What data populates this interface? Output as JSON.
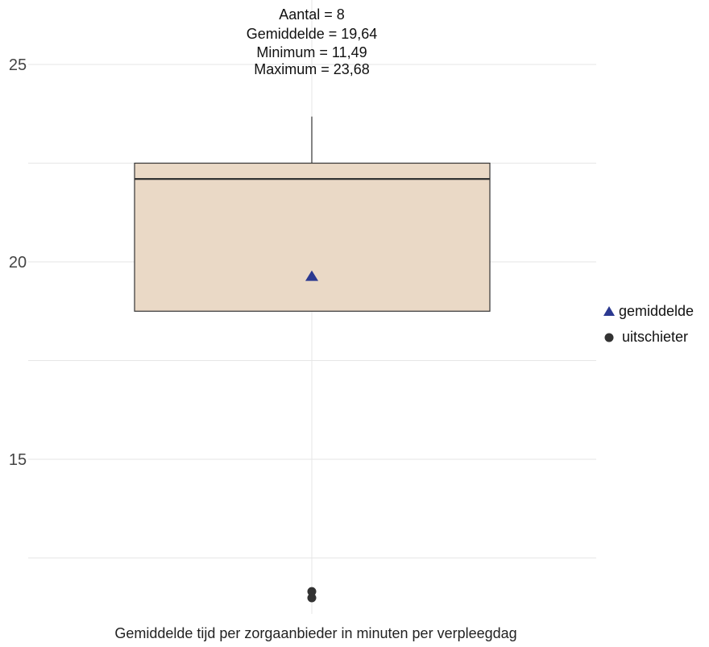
{
  "chart_data": {
    "type": "boxplot",
    "xlabel": "Gemiddelde tijd per zorgaanbieder in minuten per verpleegdag",
    "ylabel": "",
    "ylim": [
      11.0,
      26.1
    ],
    "yticks": [
      15,
      20,
      25
    ],
    "grid": true,
    "legend_position": "right",
    "stats_text": [
      "Aantal = 8",
      "Gemiddelde = 19,64",
      "Minimum = 11,49",
      "Maximum = 23,68"
    ],
    "box": {
      "q1": 18.75,
      "median": 22.1,
      "q3": 22.5,
      "whisker_low": 18.75,
      "whisker_high": 23.68,
      "mean": 19.64,
      "outliers": [
        11.49,
        11.65
      ]
    },
    "legend": [
      {
        "symbol": "triangle",
        "label": "gemiddelde"
      },
      {
        "symbol": "circle",
        "label": "uitschieter"
      }
    ],
    "colors": {
      "box_fill": "#ead9c6",
      "box_stroke": "#333333",
      "mean_marker": "#2b3990",
      "outlier_marker": "#333333",
      "grid": "#e6e6e6"
    }
  }
}
